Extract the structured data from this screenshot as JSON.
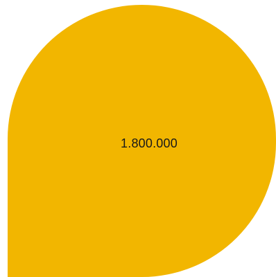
{
  "shape": {
    "value_label": "1.800.000",
    "fill_color": "#F2B600",
    "text_color": "#1a1a1a"
  }
}
